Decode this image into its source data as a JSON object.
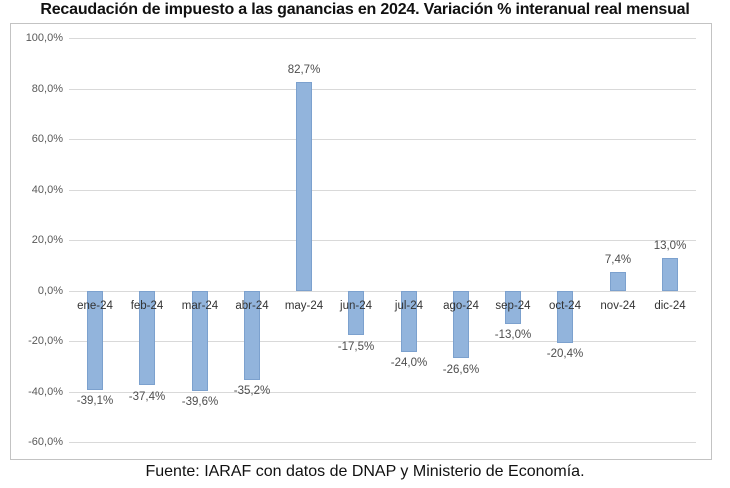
{
  "title": "Recaudación de impuesto a las ganancias en 2024. Variación % interanual real mensual",
  "source": "Fuente: IARAF con datos de DNAP y Ministerio de Economía.",
  "colors": {
    "bar_fill": "#92b4dc",
    "bar_border": "#7ca1ce",
    "gridline": "#d9d9d9",
    "chart_border": "#c3c3c3",
    "axis_label": "#595959",
    "category_label": "#333333",
    "data_label": "#4d4d4d",
    "title_color": "#111111"
  },
  "chart_data": {
    "type": "bar",
    "title": "Recaudación de impuesto a las ganancias en 2024. Variación % interanual real mensual",
    "categories": [
      "ene-24",
      "feb-24",
      "mar-24",
      "abr-24",
      "may-24",
      "jun-24",
      "jul-24",
      "ago-24",
      "sep-24",
      "oct-24",
      "nov-24",
      "dic-24"
    ],
    "values": [
      -39.1,
      -37.4,
      -39.6,
      -35.2,
      82.7,
      -17.5,
      -24.0,
      -26.6,
      -13.0,
      -20.4,
      7.4,
      13.0
    ],
    "data_labels": [
      "-39,1%",
      "-37,4%",
      "-39,6%",
      "-35,2%",
      "82,7%",
      "-17,5%",
      "-24,0%",
      "-26,6%",
      "-13,0%",
      "-20,4%",
      "7,4%",
      "13,0%"
    ],
    "y_ticks": [
      {
        "label": "100,0%",
        "value": 100
      },
      {
        "label": "80,0%",
        "value": 80
      },
      {
        "label": "60,0%",
        "value": 60
      },
      {
        "label": "40,0%",
        "value": 40
      },
      {
        "label": "20,0%",
        "value": 20
      },
      {
        "label": "0,0%",
        "value": 0
      },
      {
        "label": "-20,0%",
        "value": -20
      },
      {
        "label": "-40,0%",
        "value": -40
      },
      {
        "label": "-60,0%",
        "value": -60
      }
    ],
    "ylim": [
      -60,
      100
    ],
    "xlabel": "",
    "ylabel": "",
    "grid": true,
    "legend_position": "none"
  }
}
